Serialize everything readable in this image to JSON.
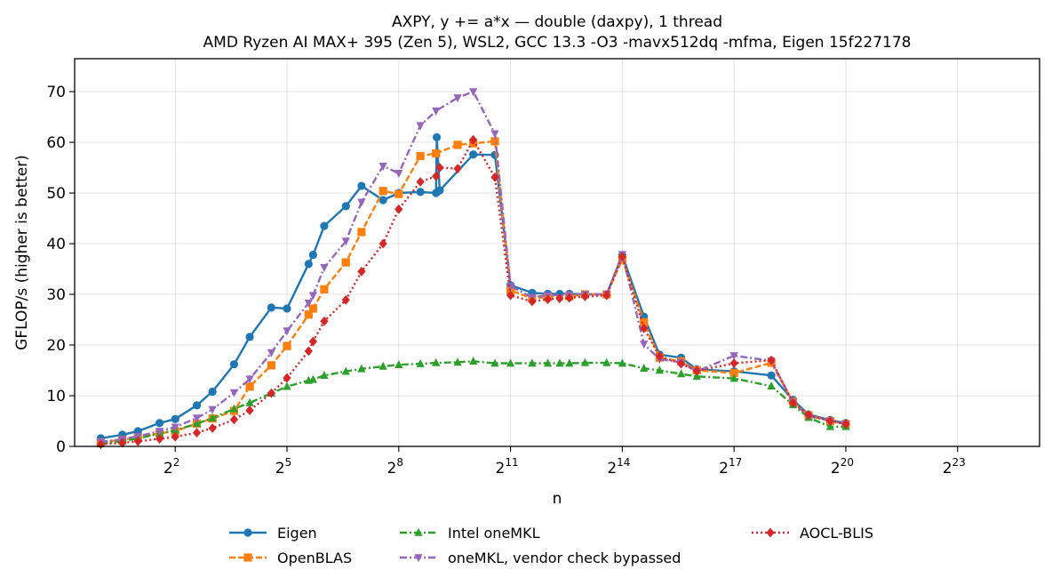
{
  "chart_data": {
    "type": "line",
    "title": "AXPY, y += a*x — double (daxpy), 1 thread",
    "subtitle": "AMD Ryzen AI MAX+ 395 (Zen 5), WSL2, GCC 13.3 -O3 -mavx512dq -mfma, Eigen 15f227178",
    "xlabel": "n",
    "ylabel": "GFLOP/s (higher is better)",
    "x_scale": "log2",
    "xlim_log2": [
      -0.7,
      25.2
    ],
    "ylim": [
      0,
      76.5
    ],
    "x_ticks": [
      {
        "base": "2",
        "exp": "2",
        "log2": 2
      },
      {
        "base": "2",
        "exp": "5",
        "log2": 5
      },
      {
        "base": "2",
        "exp": "8",
        "log2": 8
      },
      {
        "base": "2",
        "exp": "11",
        "log2": 11
      },
      {
        "base": "2",
        "exp": "14",
        "log2": 14
      },
      {
        "base": "2",
        "exp": "17",
        "log2": 17
      },
      {
        "base": "2",
        "exp": "20",
        "log2": 20
      },
      {
        "base": "2",
        "exp": "23",
        "log2": 23
      }
    ],
    "y_ticks": [
      0,
      10,
      20,
      30,
      40,
      50,
      60,
      70
    ],
    "grid": true,
    "legend_position": "bottom-center",
    "series": [
      {
        "name": "Eigen",
        "color": "#1f77b4",
        "marker": "circle",
        "dash": "solid",
        "points": [
          [
            0,
            1.6
          ],
          [
            0.58,
            2.3
          ],
          [
            1,
            3
          ],
          [
            1.58,
            4.6
          ],
          [
            2,
            5.4
          ],
          [
            2.58,
            8.1
          ],
          [
            3,
            10.8
          ],
          [
            3.58,
            16.2
          ],
          [
            4,
            21.6
          ],
          [
            4.58,
            27.4
          ],
          [
            5,
            27.2
          ],
          [
            5.58,
            36
          ],
          [
            5.7,
            37.8
          ],
          [
            6,
            43.5
          ],
          [
            6.58,
            47.4
          ],
          [
            7,
            51.4
          ],
          [
            7.58,
            48.6
          ],
          [
            8,
            50
          ],
          [
            8.58,
            50.2
          ],
          [
            9,
            50
          ],
          [
            9.02,
            61
          ],
          [
            9.1,
            50.5
          ],
          [
            10,
            57.6
          ],
          [
            10.58,
            57.5
          ],
          [
            11,
            31.8
          ],
          [
            11.58,
            30.3
          ],
          [
            12,
            30.1
          ],
          [
            12.32,
            30.1
          ],
          [
            12.58,
            30.1
          ],
          [
            13,
            30
          ],
          [
            13.58,
            30
          ],
          [
            14,
            37.7
          ],
          [
            14.58,
            25.6
          ],
          [
            15,
            18.1
          ],
          [
            15.58,
            17.5
          ],
          [
            16,
            15.2
          ],
          [
            17,
            14.8
          ],
          [
            18,
            14
          ],
          [
            18.58,
            9.2
          ],
          [
            19,
            6.3
          ],
          [
            19.58,
            5.2
          ],
          [
            20,
            4.6
          ]
        ]
      },
      {
        "name": "OpenBLAS",
        "color": "#ff7f0e",
        "marker": "square",
        "dash": "dashed",
        "points": [
          [
            0,
            0.8
          ],
          [
            0.58,
            1.3
          ],
          [
            1,
            1.8
          ],
          [
            1.58,
            2.6
          ],
          [
            2,
            3
          ],
          [
            2.58,
            4.5
          ],
          [
            3,
            5.5
          ],
          [
            3.58,
            7
          ],
          [
            4,
            11.8
          ],
          [
            4.58,
            16
          ],
          [
            5,
            19.8
          ],
          [
            5.58,
            26
          ],
          [
            5.7,
            27.2
          ],
          [
            6,
            31
          ],
          [
            6.58,
            36.3
          ],
          [
            7,
            42.3
          ],
          [
            7.58,
            50.4
          ],
          [
            8,
            49.8
          ],
          [
            8.58,
            57.3
          ],
          [
            9,
            57.8
          ],
          [
            9.58,
            59.5
          ],
          [
            10,
            59.8
          ],
          [
            10.58,
            60.2
          ],
          [
            11,
            30.8
          ],
          [
            11.58,
            29.2
          ],
          [
            12,
            29.5
          ],
          [
            12.58,
            29.6
          ],
          [
            13,
            30
          ],
          [
            13.58,
            30
          ],
          [
            14,
            36.9
          ],
          [
            14.58,
            24.5
          ],
          [
            15,
            17.5
          ],
          [
            15.58,
            16.8
          ],
          [
            16,
            15
          ],
          [
            17,
            14.5
          ],
          [
            18,
            16.5
          ],
          [
            18.58,
            8.8
          ],
          [
            19,
            6.1
          ],
          [
            19.58,
            5
          ],
          [
            20,
            4.4
          ]
        ]
      },
      {
        "name": "Intel oneMKL",
        "color": "#2ca02c",
        "marker": "triangle-up",
        "dash": "dashdot",
        "points": [
          [
            0,
            0.5
          ],
          [
            0.58,
            1
          ],
          [
            1,
            1.6
          ],
          [
            1.58,
            2.5
          ],
          [
            2,
            3.2
          ],
          [
            2.58,
            4.5
          ],
          [
            3,
            5.6
          ],
          [
            3.58,
            7.4
          ],
          [
            4,
            8.6
          ],
          [
            4.58,
            10.5
          ],
          [
            5,
            11.8
          ],
          [
            5.58,
            13
          ],
          [
            5.7,
            13.2
          ],
          [
            6,
            14
          ],
          [
            6.58,
            14.8
          ],
          [
            7,
            15.3
          ],
          [
            7.58,
            15.8
          ],
          [
            8,
            16.1
          ],
          [
            8.58,
            16.3
          ],
          [
            9,
            16.5
          ],
          [
            9.58,
            16.6
          ],
          [
            10,
            16.8
          ],
          [
            10.58,
            16.4
          ],
          [
            11,
            16.4
          ],
          [
            11.58,
            16.4
          ],
          [
            12,
            16.4
          ],
          [
            12.32,
            16.4
          ],
          [
            12.58,
            16.4
          ],
          [
            13,
            16.5
          ],
          [
            13.58,
            16.5
          ],
          [
            14,
            16.4
          ],
          [
            14.58,
            15.4
          ],
          [
            15,
            15
          ],
          [
            15.58,
            14.3
          ],
          [
            16,
            13.8
          ],
          [
            17,
            13.4
          ],
          [
            18,
            11.9
          ],
          [
            18.58,
            8.2
          ],
          [
            19,
            5.7
          ],
          [
            19.58,
            3.9
          ],
          [
            20,
            3.9
          ]
        ]
      },
      {
        "name": "oneMKL, vendor check bypassed",
        "color": "#9467bd",
        "marker": "triangle-down",
        "dash": "dashdot",
        "points": [
          [
            0,
            0.9
          ],
          [
            0.58,
            1.4
          ],
          [
            1,
            2
          ],
          [
            1.58,
            3
          ],
          [
            2,
            3.8
          ],
          [
            2.58,
            5.6
          ],
          [
            3,
            7.3
          ],
          [
            3.58,
            10.6
          ],
          [
            4,
            13.3
          ],
          [
            4.58,
            18.5
          ],
          [
            5,
            22.8
          ],
          [
            5.58,
            28.3
          ],
          [
            5.7,
            29.8
          ],
          [
            6,
            35.3
          ],
          [
            6.58,
            40.5
          ],
          [
            7,
            48.2
          ],
          [
            7.58,
            55.3
          ],
          [
            8,
            53.9
          ],
          [
            8.58,
            63.3
          ],
          [
            9,
            66.2
          ],
          [
            9.58,
            68.8
          ],
          [
            10,
            70
          ],
          [
            10.58,
            61.7
          ],
          [
            11,
            31.6
          ],
          [
            11.58,
            29.4
          ],
          [
            12,
            29.8
          ],
          [
            12.58,
            29.9
          ],
          [
            13,
            30
          ],
          [
            13.58,
            30
          ],
          [
            14,
            37.9
          ],
          [
            14.58,
            20.2
          ],
          [
            15,
            17.2
          ],
          [
            15.58,
            16.6
          ],
          [
            16,
            14.8
          ],
          [
            17,
            17.9
          ],
          [
            18,
            16.9
          ],
          [
            18.58,
            8.7
          ],
          [
            19,
            6
          ],
          [
            19.58,
            5
          ],
          [
            20,
            4.4
          ]
        ]
      },
      {
        "name": "AOCL-BLIS",
        "color": "#d62728",
        "marker": "diamond",
        "dash": "dotted",
        "points": [
          [
            0,
            0.4
          ],
          [
            0.58,
            0.7
          ],
          [
            1,
            1
          ],
          [
            1.58,
            1.5
          ],
          [
            2,
            1.9
          ],
          [
            2.58,
            2.7
          ],
          [
            3,
            3.6
          ],
          [
            3.58,
            5.3
          ],
          [
            4,
            7.1
          ],
          [
            4.58,
            10.5
          ],
          [
            5,
            13.5
          ],
          [
            5.58,
            18.8
          ],
          [
            5.7,
            20.7
          ],
          [
            6,
            24.7
          ],
          [
            6.58,
            28.9
          ],
          [
            7,
            34.5
          ],
          [
            7.58,
            40
          ],
          [
            8,
            46.8
          ],
          [
            8.58,
            52.2
          ],
          [
            9,
            53.3
          ],
          [
            9.1,
            55
          ],
          [
            9.58,
            54.8
          ],
          [
            10,
            60.5
          ],
          [
            10.58,
            53.1
          ],
          [
            11,
            29.8
          ],
          [
            11.58,
            28.6
          ],
          [
            12,
            29
          ],
          [
            12.32,
            29.2
          ],
          [
            12.58,
            29.3
          ],
          [
            13,
            29.6
          ],
          [
            13.58,
            29.8
          ],
          [
            14,
            37.4
          ],
          [
            14.58,
            23.3
          ],
          [
            15,
            17.8
          ],
          [
            15.58,
            16.3
          ],
          [
            16,
            14.9
          ],
          [
            17,
            16.4
          ],
          [
            18,
            17
          ],
          [
            18.58,
            8.6
          ],
          [
            19,
            6.2
          ],
          [
            19.58,
            5
          ],
          [
            20,
            4.4
          ]
        ]
      }
    ]
  }
}
